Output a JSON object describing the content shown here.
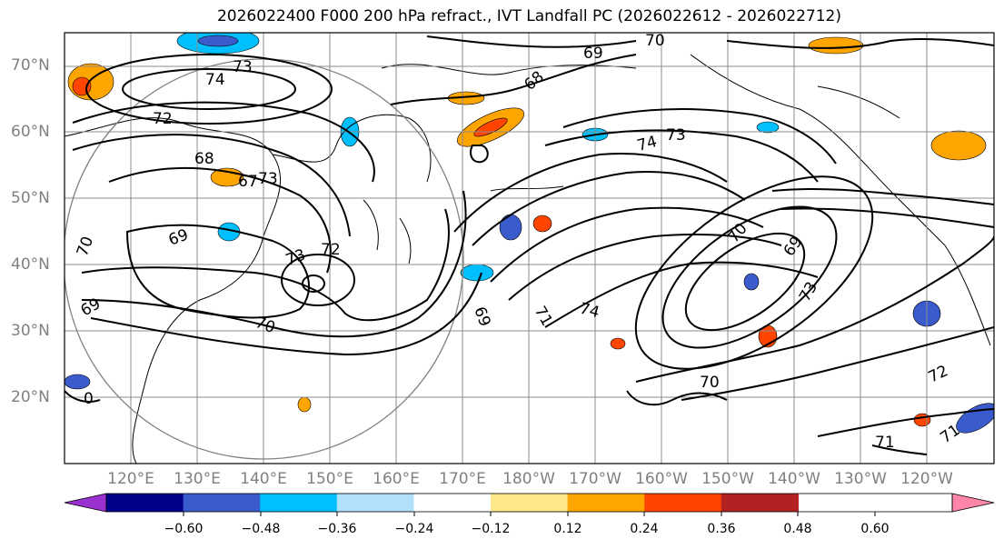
{
  "title": "2026022400 F000 200 hPa refract., IVT Landfall PC (2026022612 - 2026022712)",
  "lat_labels": [
    "70°N",
    "60°N",
    "50°N",
    "40°N",
    "30°N",
    "20°N"
  ],
  "lon_labels": [
    "120°E",
    "130°E",
    "140°E",
    "150°E",
    "160°E",
    "170°E",
    "180°W",
    "170°W",
    "160°W",
    "150°W",
    "140°W",
    "130°W",
    "120°W"
  ],
  "contour_labels": [
    "70",
    "69",
    "73",
    "74",
    "72",
    "68",
    "68",
    "74",
    "73",
    "69",
    "67",
    "73",
    "70",
    "73",
    "70",
    "69",
    "72",
    "69",
    "74",
    "71",
    "70",
    "69",
    "73",
    "70",
    "72",
    "71",
    "71",
    "0"
  ],
  "colorbar": {
    "ticks": [
      "−0.60",
      "−0.48",
      "−0.36",
      "−0.24",
      "−0.12",
      "0.12",
      "0.24",
      "0.36",
      "0.48",
      "0.60"
    ],
    "colors": [
      "#9b30d0",
      "#00008b",
      "#3a5bcc",
      "#00bfff",
      "#b0e0fa",
      "#ffffff",
      "#ffe88a",
      "#ffa500",
      "#ff4500",
      "#b22222",
      "#ff86a8"
    ]
  }
}
